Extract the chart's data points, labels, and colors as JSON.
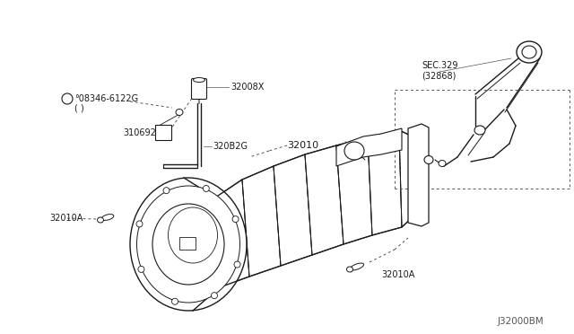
{
  "bg_color": "#ffffff",
  "line_color": "#1a1a1a",
  "text_color": "#1a1a1a",
  "dashed_color": "#555555",
  "watermark": "J32000BM",
  "labels": {
    "sec329": "SEC.329\n(32868)",
    "part32010": "32010",
    "part32010A_left": "32010A",
    "part32010A_bottom": "32010A",
    "part32008x": "32008X",
    "part310692": "310692",
    "part320b2g": "320B2G",
    "part08346_line1": "°08346-6122G",
    "part08346_line2": "( )"
  },
  "font_size": 7.0
}
